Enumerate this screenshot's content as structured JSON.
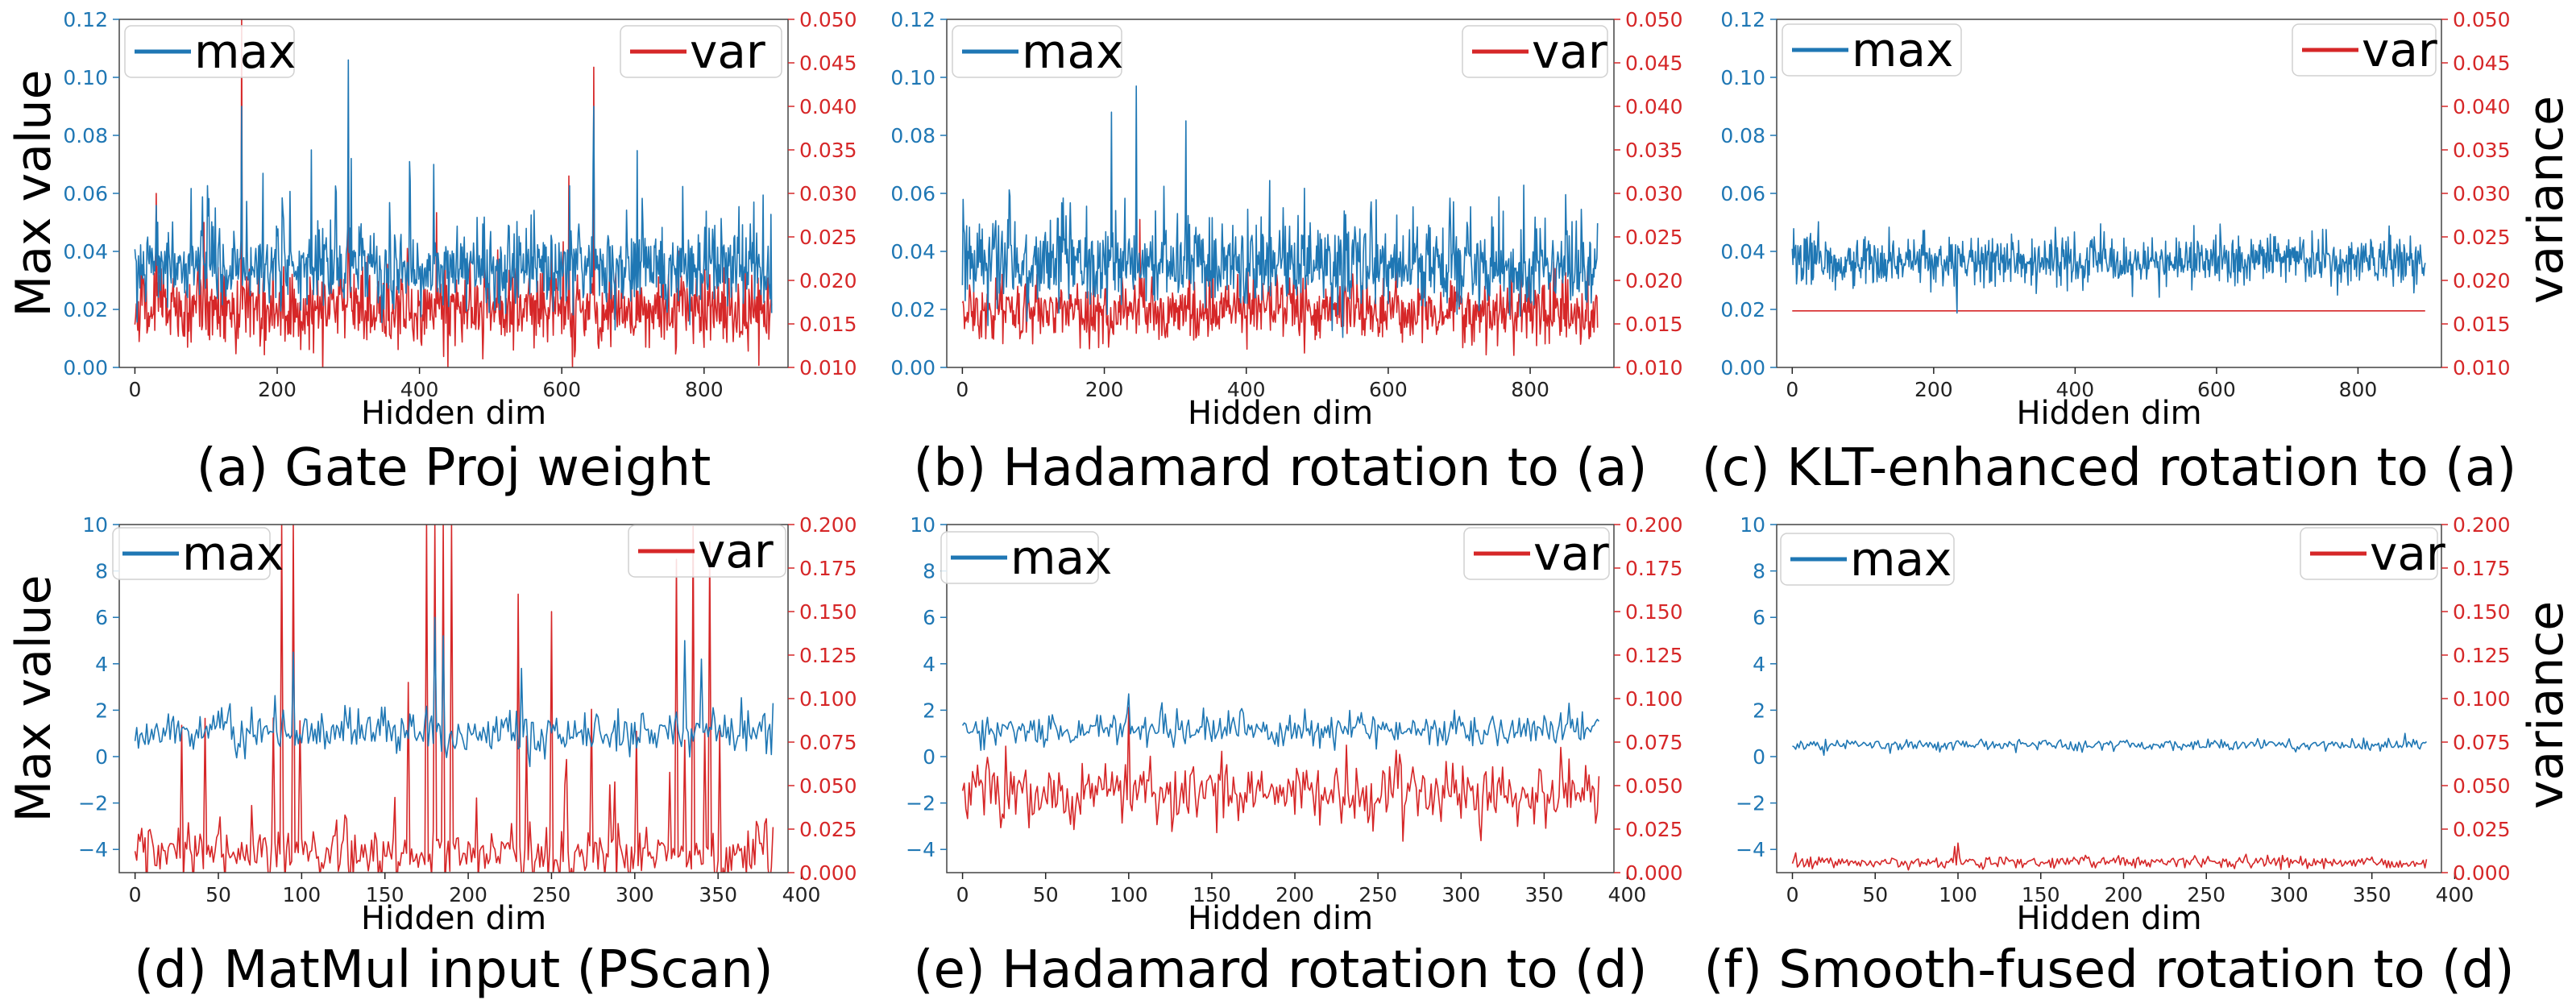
{
  "colors": {
    "max": "#1f77b4",
    "var": "#d62728",
    "frame": "#444444"
  },
  "chart_data": [
    {
      "type": "line",
      "panel": "a",
      "caption": "(a) Gate Proj weight",
      "xlabel": "Hidden dim",
      "ylabel": "Max value",
      "y2label": "",
      "xlim": [
        -22,
        918
      ],
      "xticks": [
        0,
        200,
        400,
        600,
        800
      ],
      "xtick_labels": [
        "0",
        "200",
        "400",
        "600",
        "800"
      ],
      "ylim": [
        0,
        0.12
      ],
      "yticks": [
        0,
        0.02,
        0.04,
        0.06,
        0.08,
        0.1,
        0.12
      ],
      "ytick_labels": [
        "0.00",
        "0.02",
        "0.04",
        "0.06",
        "0.08",
        "0.10",
        "0.12"
      ],
      "y2lim": [
        0.01,
        0.05
      ],
      "y2ticks": [
        0.01,
        0.015,
        0.02,
        0.025,
        0.03,
        0.035,
        0.04,
        0.045,
        0.05
      ],
      "y2tick_labels": [
        "0.010",
        "0.015",
        "0.020",
        "0.025",
        "0.030",
        "0.035",
        "0.040",
        "0.045",
        "0.050"
      ],
      "legend": {
        "max": "max",
        "var": "var"
      },
      "series": [
        {
          "name": "max",
          "axis": "left",
          "n": 896,
          "base": 0.034,
          "noise": 0.007,
          "spike_prob": 0.07,
          "spike_amp": 0.028,
          "peaks": [
            [
              150,
              0.09
            ],
            [
              300,
              0.106
            ],
            [
              645,
              0.09
            ],
            [
              248,
              0.075
            ],
            [
              420,
              0.07
            ]
          ]
        },
        {
          "name": "var",
          "axis": "right",
          "n": 896,
          "base": 0.0165,
          "noise": 0.0022,
          "spike_prob": 0.06,
          "spike_amp": 0.007,
          "peaks": [
            [
              150,
              0.05
            ],
            [
              645,
              0.0445
            ],
            [
              300,
              0.033
            ],
            [
              610,
              0.032
            ],
            [
              30,
              0.03
            ]
          ],
          "dips": [
            [
              440,
              0.01
            ],
            [
              615,
              0.01
            ]
          ]
        }
      ]
    },
    {
      "type": "line",
      "panel": "b",
      "caption": "(b) Hadamard rotation to (a)",
      "xlabel": "Hidden dim",
      "ylabel": "",
      "y2label": "",
      "xlim": [
        -22,
        918
      ],
      "xticks": [
        0,
        200,
        400,
        600,
        800
      ],
      "xtick_labels": [
        "0",
        "200",
        "400",
        "600",
        "800"
      ],
      "ylim": [
        0,
        0.12
      ],
      "yticks": [
        0,
        0.02,
        0.04,
        0.06,
        0.08,
        0.1,
        0.12
      ],
      "ytick_labels": [
        "0.00",
        "0.02",
        "0.04",
        "0.06",
        "0.08",
        "0.10",
        "0.12"
      ],
      "y2lim": [
        0.01,
        0.05
      ],
      "y2ticks": [
        0.01,
        0.015,
        0.02,
        0.025,
        0.03,
        0.035,
        0.04,
        0.045,
        0.05
      ],
      "y2tick_labels": [
        "0.010",
        "0.015",
        "0.020",
        "0.025",
        "0.030",
        "0.035",
        "0.040",
        "0.045",
        "0.050"
      ],
      "legend": {
        "max": "max",
        "var": "var"
      },
      "series": [
        {
          "name": "max",
          "axis": "left",
          "n": 896,
          "base": 0.035,
          "noise": 0.007,
          "spike_prob": 0.08,
          "spike_amp": 0.026,
          "peaks": [
            [
              245,
              0.097
            ],
            [
              210,
              0.088
            ],
            [
              315,
              0.085
            ]
          ]
        },
        {
          "name": "var",
          "axis": "right",
          "n": 896,
          "base": 0.0165,
          "noise": 0.0018,
          "spike_prob": 0.06,
          "spike_amp": 0.004,
          "peaks": [
            [
              250,
              0.027
            ],
            [
              320,
              0.025
            ]
          ]
        }
      ]
    },
    {
      "type": "line",
      "panel": "c",
      "caption": "(c) KLT-enhanced rotation to (a)",
      "xlabel": "Hidden dim",
      "ylabel": "",
      "y2label": "variance",
      "xlim": [
        -22,
        918
      ],
      "xticks": [
        0,
        200,
        400,
        600,
        800
      ],
      "xtick_labels": [
        "0",
        "200",
        "400",
        "600",
        "800"
      ],
      "ylim": [
        0,
        0.12
      ],
      "yticks": [
        0,
        0.02,
        0.04,
        0.06,
        0.08,
        0.1,
        0.12
      ],
      "ytick_labels": [
        "0.00",
        "0.02",
        "0.04",
        "0.06",
        "0.08",
        "0.10",
        "0.12"
      ],
      "y2lim": [
        0.01,
        0.05
      ],
      "y2ticks": [
        0.01,
        0.015,
        0.02,
        0.025,
        0.03,
        0.035,
        0.04,
        0.045,
        0.05
      ],
      "y2tick_labels": [
        "0.010",
        "0.015",
        "0.020",
        "0.025",
        "0.030",
        "0.035",
        "0.040",
        "0.045",
        "0.050"
      ],
      "legend": {
        "max": "max",
        "var": "var"
      },
      "series": [
        {
          "name": "max",
          "axis": "left",
          "n": 896,
          "base": 0.037,
          "noise": 0.0045,
          "spike_prob": 0.0,
          "spike_amp": 0.0,
          "peaks": []
        },
        {
          "name": "var",
          "axis": "right",
          "n": 896,
          "constant": 0.0165
        }
      ]
    },
    {
      "type": "line",
      "panel": "d",
      "caption": "(d) MatMul input (PScan)",
      "xlabel": "Hidden dim",
      "ylabel": "Max value",
      "y2label": "",
      "xlim": [
        -9.5,
        392
      ],
      "xticks": [
        0,
        50,
        100,
        150,
        200,
        250,
        300,
        350,
        400
      ],
      "xtick_labels": [
        "0",
        "50",
        "100",
        "150",
        "200",
        "250",
        "300",
        "350",
        "400"
      ],
      "ylim": [
        -5,
        10
      ],
      "yticks": [
        -4,
        -2,
        0,
        2,
        4,
        6,
        8,
        10
      ],
      "ytick_labels": [
        "−4",
        "−2",
        "0",
        "2",
        "4",
        "6",
        "8",
        "10"
      ],
      "y2lim": [
        0,
        0.2
      ],
      "y2ticks": [
        0,
        0.025,
        0.05,
        0.075,
        0.1,
        0.125,
        0.15,
        0.175,
        0.2
      ],
      "y2tick_labels": [
        "0.000",
        "0.025",
        "0.050",
        "0.075",
        "0.100",
        "0.125",
        "0.150",
        "0.175",
        "0.200"
      ],
      "legend": {
        "max": "max",
        "var": "var"
      },
      "series": [
        {
          "name": "max",
          "axis": "left",
          "n": 384,
          "base": 1.0,
          "noise": 0.45,
          "spike_prob": 0.05,
          "spike_amp": 1.5,
          "peaks": [
            [
              180,
              6.0
            ],
            [
              95,
              4.5
            ],
            [
              232,
              3.8
            ],
            [
              330,
              5.0
            ],
            [
              340,
              4.2
            ],
            [
              185,
              5.2
            ]
          ]
        },
        {
          "name": "var",
          "axis": "right",
          "n": 384,
          "base": 0.012,
          "noise": 0.008,
          "spike_prob": 0.09,
          "spike_amp": 0.09,
          "peaks": [
            [
              88,
              0.2
            ],
            [
              95,
              0.2
            ],
            [
              175,
              0.2
            ],
            [
              180,
              0.2
            ],
            [
              185,
              0.2
            ],
            [
              190,
              0.2
            ],
            [
              230,
              0.16
            ],
            [
              250,
              0.15
            ],
            [
              325,
              0.18
            ],
            [
              335,
              0.2
            ],
            [
              345,
              0.19
            ]
          ]
        }
      ]
    },
    {
      "type": "line",
      "panel": "e",
      "caption": "(e) Hadamard rotation to (d)",
      "xlabel": "Hidden dim",
      "ylabel": "",
      "y2label": "",
      "xlim": [
        -9.5,
        392
      ],
      "xticks": [
        0,
        50,
        100,
        150,
        200,
        250,
        300,
        350,
        400
      ],
      "xtick_labels": [
        "0",
        "50",
        "100",
        "150",
        "200",
        "250",
        "300",
        "350",
        "400"
      ],
      "ylim": [
        -5,
        10
      ],
      "yticks": [
        -4,
        -2,
        0,
        2,
        4,
        6,
        8,
        10
      ],
      "ytick_labels": [
        "−4",
        "−2",
        "0",
        "2",
        "4",
        "6",
        "8",
        "10"
      ],
      "y2lim": [
        0,
        0.2
      ],
      "y2ticks": [
        0,
        0.025,
        0.05,
        0.075,
        0.1,
        0.125,
        0.15,
        0.175,
        0.2
      ],
      "y2tick_labels": [
        "0.000",
        "0.025",
        "0.050",
        "0.075",
        "0.100",
        "0.125",
        "0.150",
        "0.175",
        "0.200"
      ],
      "legend": {
        "max": "max",
        "var": "var"
      },
      "series": [
        {
          "name": "max",
          "axis": "left",
          "n": 384,
          "base": 1.15,
          "noise": 0.35,
          "spike_prob": 0.04,
          "spike_amp": 0.8,
          "peaks": [
            [
              100,
              2.7
            ],
            [
              365,
              2.3
            ]
          ]
        },
        {
          "name": "var",
          "axis": "right",
          "n": 384,
          "base": 0.045,
          "noise": 0.01,
          "spike_prob": 0.03,
          "spike_amp": 0.02,
          "peaks": [
            [
              100,
              0.095
            ],
            [
              360,
              0.072
            ]
          ]
        }
      ]
    },
    {
      "type": "line",
      "panel": "f",
      "caption": "(f) Smooth-fused rotation to (d)",
      "xlabel": "Hidden dim",
      "ylabel": "",
      "y2label": "variance",
      "xlim": [
        -9.5,
        392
      ],
      "xticks": [
        0,
        50,
        100,
        150,
        200,
        250,
        300,
        350,
        400
      ],
      "xtick_labels": [
        "0",
        "50",
        "100",
        "150",
        "200",
        "250",
        "300",
        "350",
        "400"
      ],
      "ylim": [
        -5,
        10
      ],
      "yticks": [
        -4,
        -2,
        0,
        2,
        4,
        6,
        8,
        10
      ],
      "ytick_labels": [
        "−4",
        "−2",
        "0",
        "2",
        "4",
        "6",
        "8",
        "10"
      ],
      "y2lim": [
        0,
        0.2
      ],
      "y2ticks": [
        0,
        0.025,
        0.05,
        0.075,
        0.1,
        0.125,
        0.15,
        0.175,
        0.2
      ],
      "y2tick_labels": [
        "0.000",
        "0.025",
        "0.050",
        "0.075",
        "0.100",
        "0.125",
        "0.150",
        "0.175",
        "0.200"
      ],
      "legend": {
        "max": "max",
        "var": "var"
      },
      "series": [
        {
          "name": "max",
          "axis": "left",
          "n": 384,
          "base": 0.5,
          "noise": 0.13,
          "spike_prob": 0.02,
          "spike_amp": 0.3,
          "peaks": [
            [
              370,
              1.0
            ]
          ]
        },
        {
          "name": "var",
          "axis": "right",
          "n": 384,
          "base": 0.006,
          "noise": 0.0018,
          "spike_prob": 0.03,
          "spike_amp": 0.004,
          "peaks": [
            [
              100,
              0.017
            ],
            [
              98,
              0.015
            ]
          ]
        }
      ]
    }
  ]
}
